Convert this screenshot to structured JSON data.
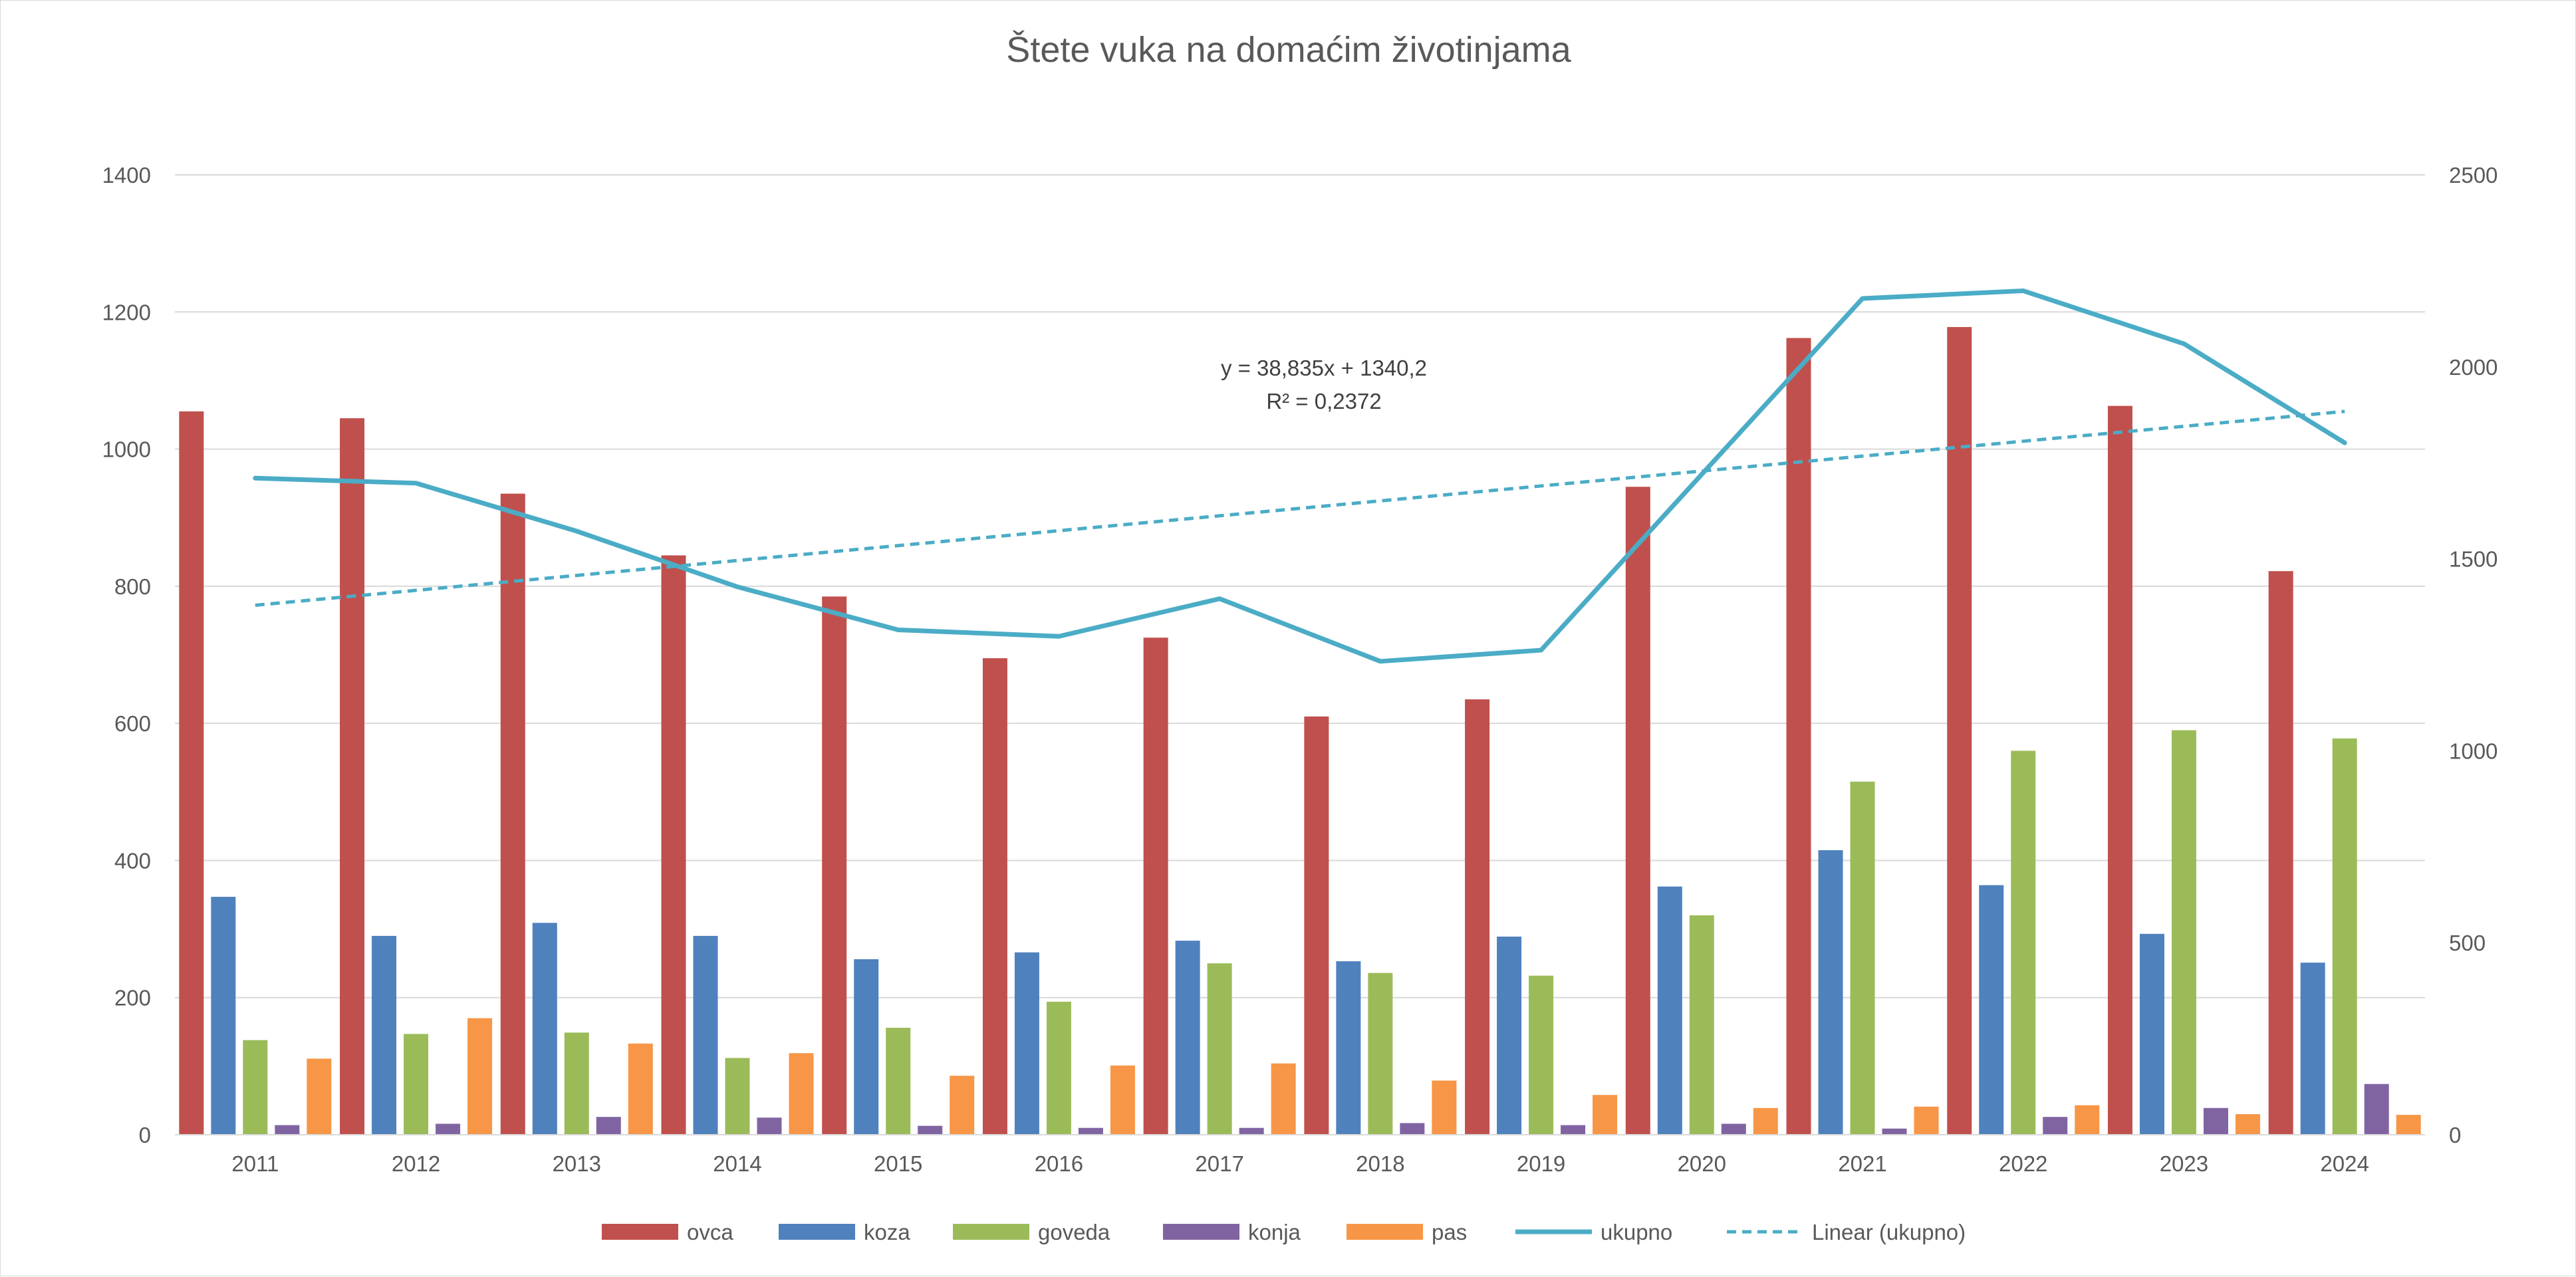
{
  "chart_data": {
    "type": "bar",
    "title": "Štete vuka na domaćim životinjama",
    "categories": [
      "2011",
      "2012",
      "2013",
      "2014",
      "2015",
      "2016",
      "2017",
      "2018",
      "2019",
      "2020",
      "2021",
      "2022",
      "2023",
      "2024"
    ],
    "series": [
      {
        "name": "ovca",
        "color": "#c0504d",
        "axis": "left",
        "values": [
          1055,
          1045,
          935,
          845,
          785,
          695,
          725,
          610,
          635,
          945,
          1162,
          1178,
          1063,
          822
        ]
      },
      {
        "name": "koza",
        "color": "#4f81bd",
        "axis": "left",
        "values": [
          347,
          290,
          309,
          290,
          256,
          266,
          283,
          253,
          289,
          362,
          415,
          364,
          293,
          251
        ]
      },
      {
        "name": "goveda",
        "color": "#9bbb59",
        "axis": "left",
        "values": [
          138,
          147,
          149,
          112,
          156,
          194,
          250,
          236,
          232,
          320,
          515,
          560,
          590,
          578
        ]
      },
      {
        "name": "konja",
        "color": "#8064a2",
        "axis": "left",
        "values": [
          14,
          16,
          26,
          25,
          13,
          10,
          10,
          17,
          14,
          16,
          9,
          26,
          39,
          74
        ]
      },
      {
        "name": "pas",
        "color": "#f79646",
        "axis": "left",
        "values": [
          111,
          170,
          133,
          119,
          86,
          101,
          104,
          79,
          58,
          39,
          41,
          43,
          30,
          29
        ]
      }
    ],
    "line_series": [
      {
        "name": "ukupno",
        "color": "#4bacc6",
        "axis": "right",
        "values": [
          1710,
          1697,
          1572,
          1427,
          1315,
          1298,
          1396,
          1233,
          1262,
          1720,
          2178,
          2198,
          2060,
          1802
        ]
      }
    ],
    "trendline": {
      "name": "Linear (ukupno)",
      "color": "#4bacc6",
      "axis": "right",
      "slope": 38.835,
      "intercept": 1340.2,
      "equation": "y = 38,835x + 1340,2",
      "r2": "R² = 0,2372"
    },
    "y_left": {
      "min": 0,
      "max": 1400,
      "step": 200,
      "ticks": [
        "0",
        "200",
        "400",
        "600",
        "800",
        "1000",
        "1200",
        "1400"
      ]
    },
    "y_right": {
      "min": 0,
      "max": 2500,
      "step": 500,
      "ticks": [
        "0",
        "500",
        "1000",
        "1500",
        "2000",
        "2500"
      ]
    },
    "gridlines": true,
    "legend_position": "bottom",
    "legend": [
      "ovca",
      "koza",
      "goveda",
      "konja",
      "pas",
      "ukupno",
      "Linear (ukupno)"
    ]
  }
}
